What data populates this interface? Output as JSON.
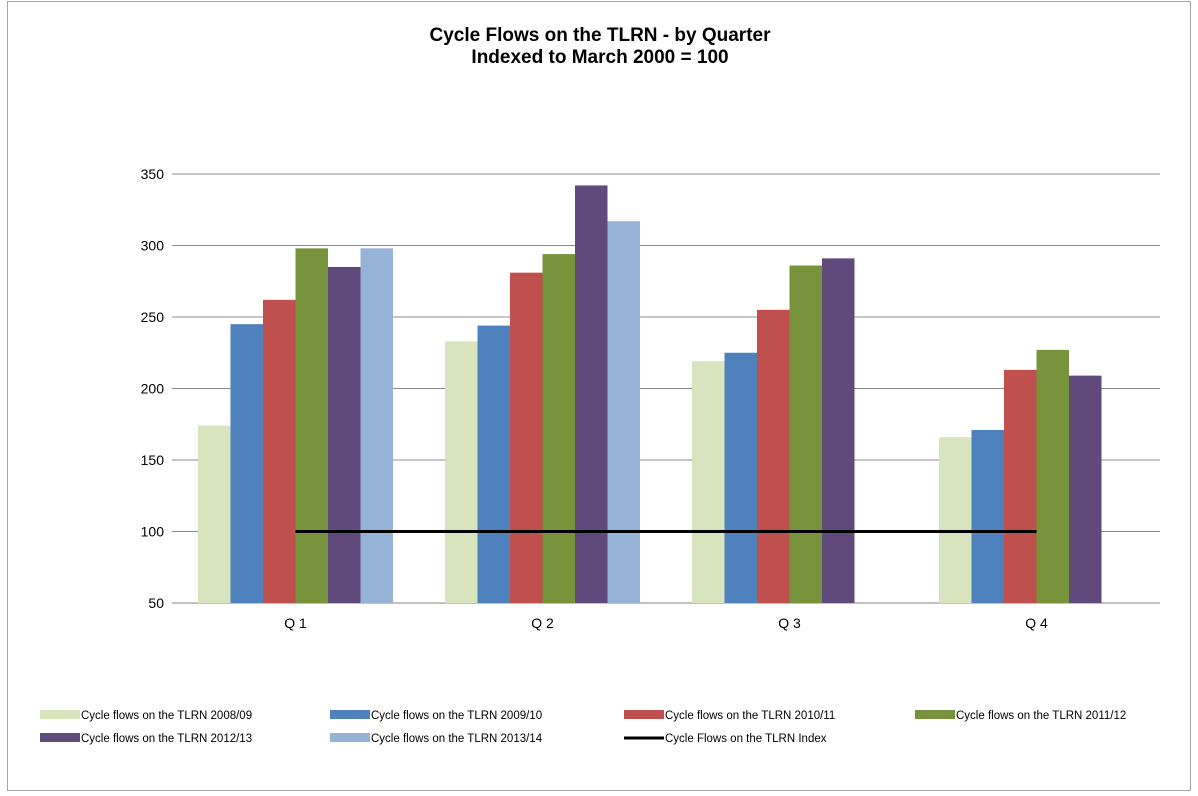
{
  "chart_data": {
    "type": "bar",
    "title": "Cycle Flows on the TLRN - by Quarter",
    "subtitle": "Indexed to March 2000 = 100",
    "categories": [
      "Q 1",
      "Q 2",
      "Q 3",
      "Q 4"
    ],
    "ylim": [
      50,
      350
    ],
    "yticks": [
      50,
      100,
      150,
      200,
      250,
      300,
      350
    ],
    "grid": true,
    "legend_position": "bottom",
    "series": [
      {
        "name": "Cycle flows on the TLRN 2008/09",
        "color": "#d7e4bd",
        "values": [
          174,
          233,
          219,
          166
        ]
      },
      {
        "name": "Cycle flows on the TLRN 2009/10",
        "color": "#4f81bd",
        "values": [
          245,
          244,
          225,
          171
        ]
      },
      {
        "name": "Cycle flows on the TLRN 2010/11",
        "color": "#c0504d",
        "values": [
          262,
          281,
          255,
          213
        ]
      },
      {
        "name": "Cycle flows on the TLRN 2011/12",
        "color": "#77933c",
        "values": [
          298,
          294,
          286,
          227
        ]
      },
      {
        "name": "Cycle flows on the TLRN 2012/13",
        "color": "#604a7b",
        "values": [
          285,
          342,
          291,
          209
        ]
      },
      {
        "name": "Cycle flows on the TLRN 2013/14",
        "color": "#95b3d7",
        "values": [
          298,
          317,
          null,
          null
        ]
      }
    ],
    "line_series": {
      "name": "Cycle Flows on the TLRN Index",
      "color": "#000000",
      "values": [
        100,
        100,
        100,
        100
      ]
    }
  }
}
